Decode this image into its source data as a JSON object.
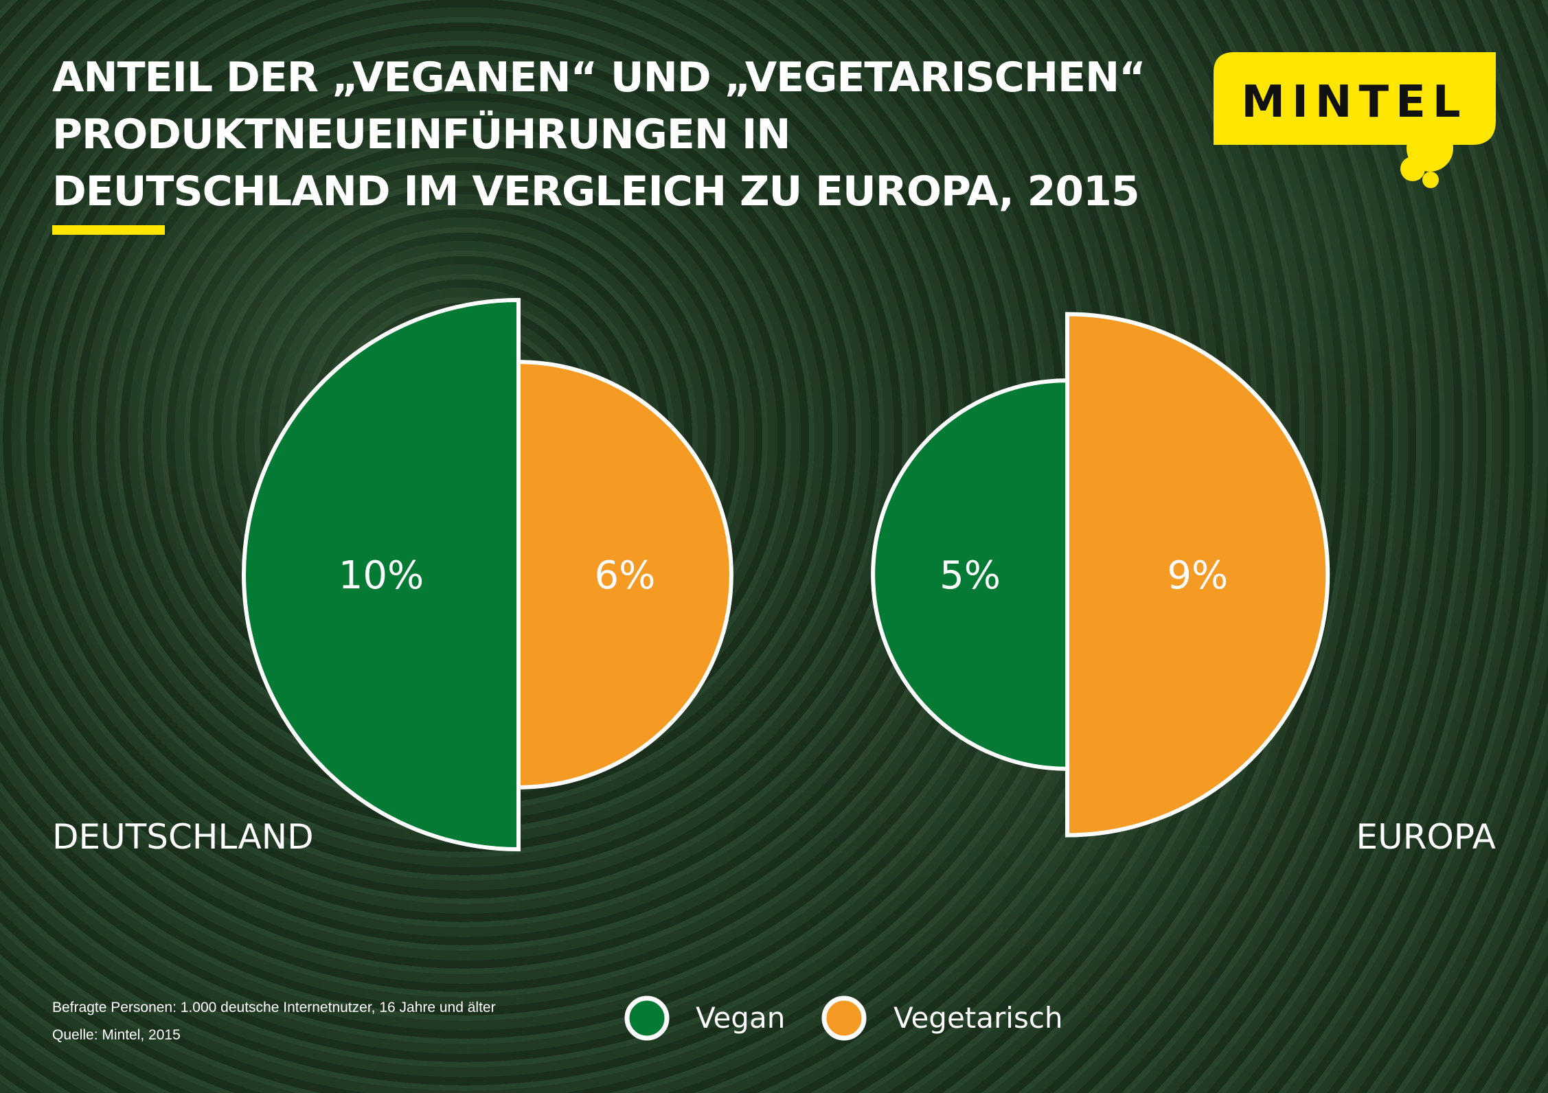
{
  "title_lines": [
    "ANTEIL DER „VEGANEN“ UND „VEGETARISCHEN“",
    "PRODUKTNEUEINFÜHRUNGEN IN",
    "DEUTSCHLAND IM VERGLEICH ZU EUROPA, 2015"
  ],
  "logo_text": "MINTEL",
  "colors": {
    "vegan": "#047a35",
    "vegetarisch": "#f59a23",
    "accent": "#ffe600"
  },
  "chart_data": {
    "type": "pie",
    "title": "ANTEIL DER „VEGANEN“ UND „VEGETARISCHEN“ PRODUKTNEUEINFÜHRUNGEN IN DEUTSCHLAND IM VERGLEICH ZU EUROPA, 2015",
    "unit": "%",
    "groups": [
      {
        "label": "DEUTSCHLAND",
        "values": {
          "Vegan": 10,
          "Vegetarisch": 6
        },
        "value_labels": {
          "Vegan": "10%",
          "Vegetarisch": "6%"
        }
      },
      {
        "label": "EUROPA",
        "values": {
          "Vegan": 5,
          "Vegetarisch": 9
        },
        "value_labels": {
          "Vegan": "5%",
          "Vegetarisch": "9%"
        }
      }
    ],
    "legend": [
      "Vegan",
      "Vegetarisch"
    ],
    "legend_placement": "bottom"
  },
  "footer": {
    "sample": "Befragte Personen: 1.000 deutsche Internetnutzer, 16 Jahre und älter",
    "source": "Quelle: Mintel, 2015"
  }
}
